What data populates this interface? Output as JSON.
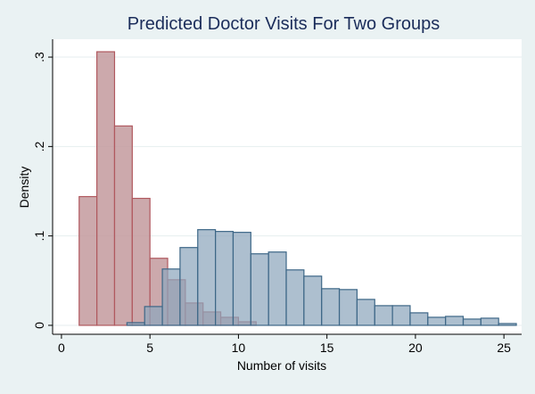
{
  "chart_data": {
    "type": "bar",
    "title": "Predicted Doctor Visits For Two Groups",
    "xlabel": "Number of visits",
    "ylabel": "Density",
    "xlim": [
      -0.5,
      26
    ],
    "ylim": [
      -0.01,
      0.32
    ],
    "x_ticks": [
      0,
      5,
      10,
      15,
      20,
      25
    ],
    "x_tick_labels": [
      "0",
      "5",
      "10",
      "15",
      "20",
      "25"
    ],
    "y_ticks": [
      0,
      0.1,
      0.2,
      0.3
    ],
    "y_tick_labels": [
      "0",
      ".1",
      ".2",
      ".3"
    ],
    "grid": true,
    "bin_width": 1,
    "colors": {
      "background": "#eaf2f3",
      "plot_area": "#ffffff",
      "title": "#1a2c5a",
      "grid": "#e6eeef"
    },
    "series": [
      {
        "fill": "#c39a9d",
        "fill_opacity": 0.85,
        "stroke": "#b0585e",
        "bins": [
          {
            "x0": 1,
            "density": 0.144
          },
          {
            "x0": 2,
            "density": 0.306
          },
          {
            "x0": 3,
            "density": 0.223
          },
          {
            "x0": 4,
            "density": 0.142
          },
          {
            "x0": 5,
            "density": 0.075
          },
          {
            "x0": 6,
            "density": 0.051
          },
          {
            "x0": 7,
            "density": 0.025
          },
          {
            "x0": 8,
            "density": 0.015
          },
          {
            "x0": 9,
            "density": 0.009
          },
          {
            "x0": 10,
            "density": 0.004
          }
        ]
      },
      {
        "fill": "#8ea6bc",
        "fill_opacity": 0.72,
        "stroke": "#3d6787",
        "bins": [
          {
            "x0": 3.7,
            "density": 0.003
          },
          {
            "x0": 4.7,
            "density": 0.021
          },
          {
            "x0": 5.7,
            "density": 0.063
          },
          {
            "x0": 6.7,
            "density": 0.087
          },
          {
            "x0": 7.7,
            "density": 0.107
          },
          {
            "x0": 8.7,
            "density": 0.105
          },
          {
            "x0": 9.7,
            "density": 0.104
          },
          {
            "x0": 10.7,
            "density": 0.08
          },
          {
            "x0": 11.7,
            "density": 0.082
          },
          {
            "x0": 12.7,
            "density": 0.062
          },
          {
            "x0": 13.7,
            "density": 0.055
          },
          {
            "x0": 14.7,
            "density": 0.041
          },
          {
            "x0": 15.7,
            "density": 0.04
          },
          {
            "x0": 16.7,
            "density": 0.029
          },
          {
            "x0": 17.7,
            "density": 0.022
          },
          {
            "x0": 18.7,
            "density": 0.022
          },
          {
            "x0": 19.7,
            "density": 0.014
          },
          {
            "x0": 20.7,
            "density": 0.009
          },
          {
            "x0": 21.7,
            "density": 0.01
          },
          {
            "x0": 22.7,
            "density": 0.007
          },
          {
            "x0": 23.7,
            "density": 0.008
          },
          {
            "x0": 24.7,
            "density": 0.002
          }
        ]
      }
    ]
  }
}
